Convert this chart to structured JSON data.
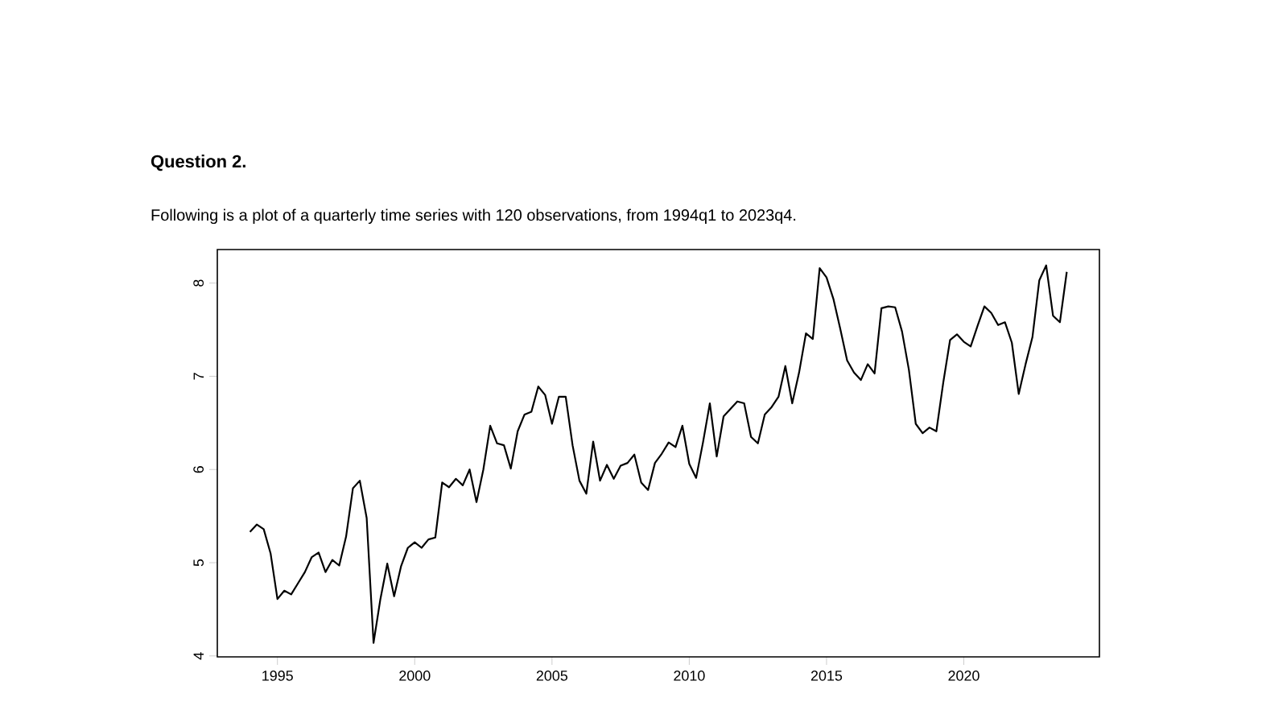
{
  "chart_data": {
    "type": "line",
    "title": "Question 2.",
    "subtitle": "Following is a plot of a quarterly time series with 120 observations, from 1994q1 to 2023q4.",
    "x": [
      1994,
      1994.25,
      1994.5,
      1994.75,
      1995,
      1995.25,
      1995.5,
      1995.75,
      1996,
      1996.25,
      1996.5,
      1996.75,
      1997,
      1997.25,
      1997.5,
      1997.75,
      1998,
      1998.25,
      1998.5,
      1998.75,
      1999,
      1999.25,
      1999.5,
      1999.75,
      2000,
      2000.25,
      2000.5,
      2000.75,
      2001,
      2001.25,
      2001.5,
      2001.75,
      2002,
      2002.25,
      2002.5,
      2002.75,
      2003,
      2003.25,
      2003.5,
      2003.75,
      2004,
      2004.25,
      2004.5,
      2004.75,
      2005,
      2005.25,
      2005.5,
      2005.75,
      2006,
      2006.25,
      2006.5,
      2006.75,
      2007,
      2007.25,
      2007.5,
      2007.75,
      2008,
      2008.25,
      2008.5,
      2008.75,
      2009,
      2009.25,
      2009.5,
      2009.75,
      2010,
      2010.25,
      2010.5,
      2010.75,
      2011,
      2011.25,
      2011.5,
      2011.75,
      2012,
      2012.25,
      2012.5,
      2012.75,
      2013,
      2013.25,
      2013.5,
      2013.75,
      2014,
      2014.25,
      2014.5,
      2014.75,
      2015,
      2015.25,
      2015.5,
      2015.75,
      2016,
      2016.25,
      2016.5,
      2016.75,
      2017,
      2017.25,
      2017.5,
      2017.75,
      2018,
      2018.25,
      2018.5,
      2018.75,
      2019,
      2019.25,
      2019.5,
      2019.75,
      2020,
      2020.25,
      2020.5,
      2020.75,
      2021,
      2021.25,
      2021.5,
      2021.75,
      2022,
      2022.25,
      2022.5,
      2022.75,
      2023,
      2023.25,
      2023.5,
      2023.75
    ],
    "series": [
      {
        "color": "#000000",
        "values": [
          5.33,
          5.41,
          5.36,
          5.1,
          4.61,
          4.7,
          4.66,
          4.78,
          4.9,
          5.06,
          5.11,
          4.9,
          5.03,
          4.97,
          5.28,
          5.8,
          5.88,
          5.48,
          4.14,
          4.61,
          4.99,
          4.64,
          4.96,
          5.16,
          5.22,
          5.16,
          5.25,
          5.27,
          5.86,
          5.81,
          5.9,
          5.83,
          6.0,
          5.65,
          6.0,
          6.47,
          6.28,
          6.26,
          6.01,
          6.41,
          6.59,
          6.62,
          6.89,
          6.8,
          6.49,
          6.78,
          6.78,
          6.26,
          5.88,
          5.74,
          6.3,
          5.88,
          6.05,
          5.9,
          6.04,
          6.07,
          6.16,
          5.86,
          5.78,
          6.07,
          6.17,
          6.29,
          6.24,
          6.47,
          6.06,
          5.91,
          6.29,
          6.71,
          6.14,
          6.57,
          6.65,
          6.73,
          6.71,
          6.35,
          6.28,
          6.59,
          6.67,
          6.78,
          7.11,
          6.71,
          7.04,
          7.46,
          7.4,
          8.16,
          8.06,
          7.83,
          7.51,
          7.17,
          7.04,
          6.96,
          7.13,
          7.03,
          7.73,
          7.75,
          7.74,
          7.48,
          7.07,
          6.49,
          6.39,
          6.45,
          6.41,
          6.93,
          7.39,
          7.45,
          7.37,
          7.32,
          7.54,
          7.75,
          7.68,
          7.55,
          7.58,
          7.36,
          6.81,
          7.13,
          7.42,
          8.03,
          8.19,
          7.65,
          7.58,
          8.12
        ]
      }
    ],
    "xlim": [
      1992.81,
      2024.94
    ],
    "ylim": [
      3.99,
      8.36
    ],
    "xticks": [
      1995,
      2000,
      2005,
      2010,
      2015,
      2020
    ],
    "yticks": [
      4,
      5,
      6,
      7,
      8
    ],
    "marker": "none",
    "line_style": "solid"
  }
}
